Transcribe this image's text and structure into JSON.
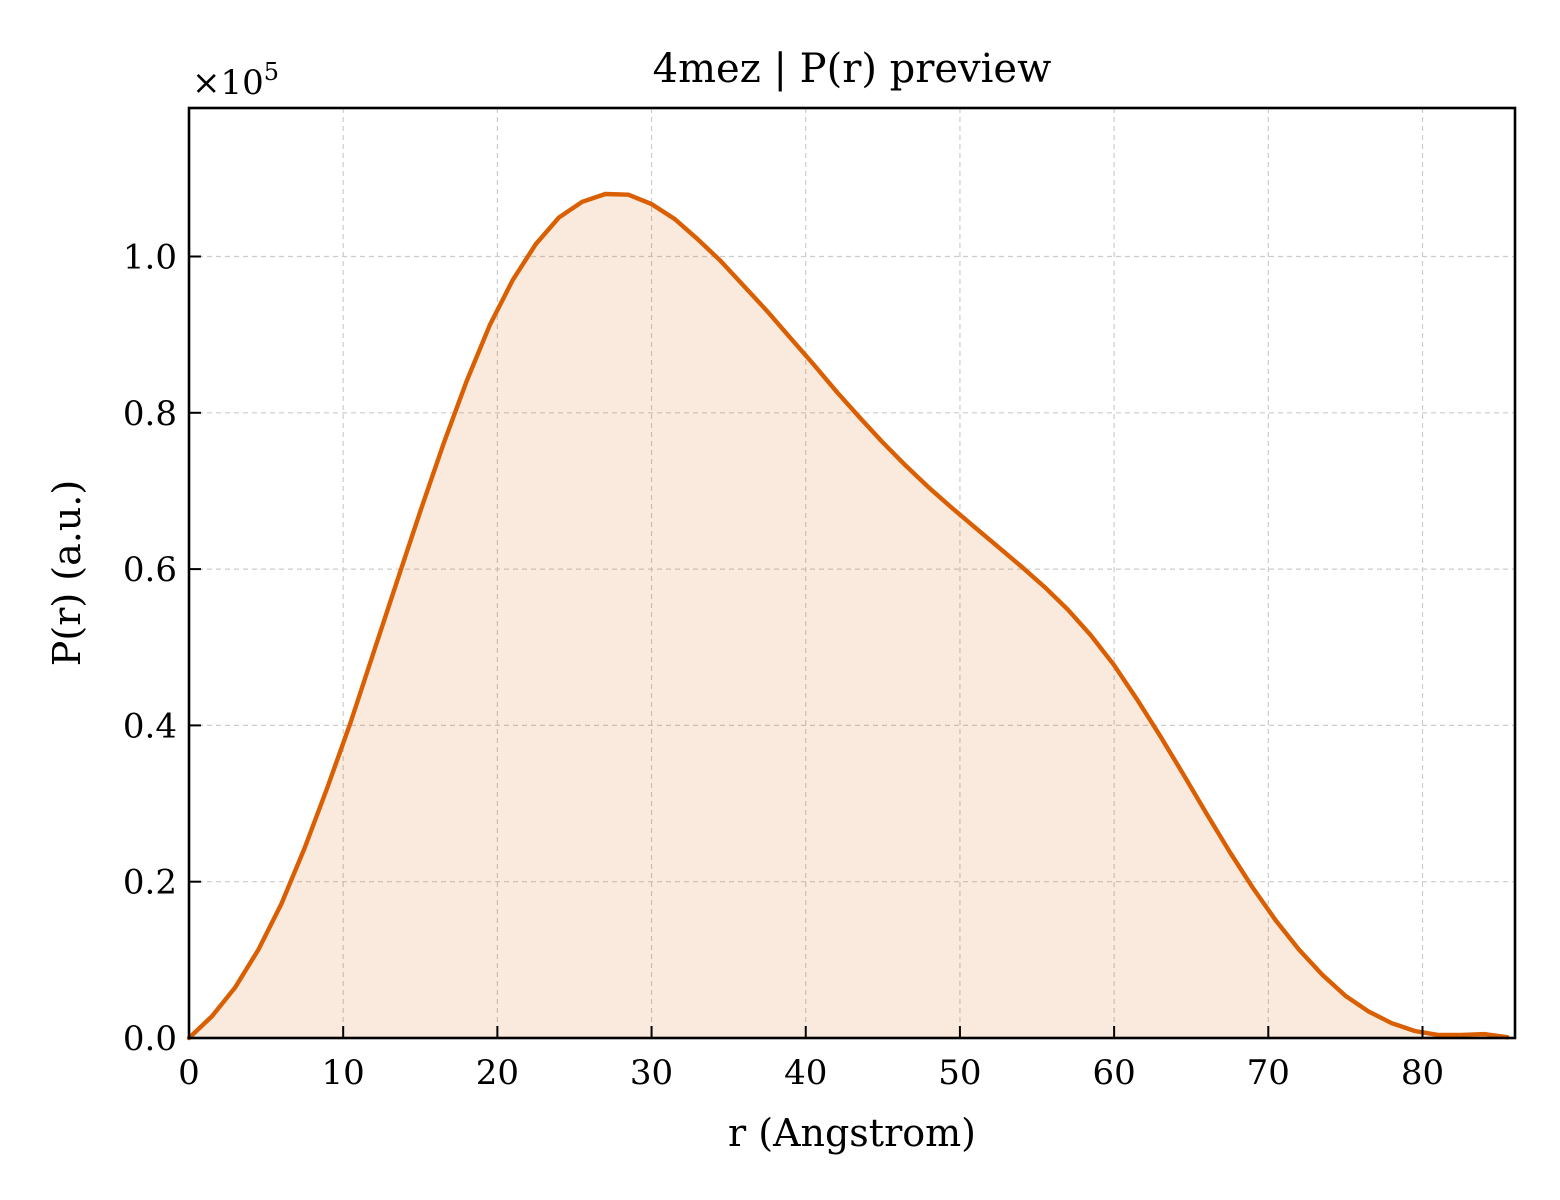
{
  "chart_data": {
    "type": "area",
    "title": "4mez | P(r) preview",
    "xlabel": "r (Angstrom)",
    "ylabel": "P(r) (a.u.)",
    "y_multiplier_base": "×10",
    "y_multiplier_exp": "5",
    "xlim": [
      0,
      86
    ],
    "ylim": [
      0,
      1.19
    ],
    "x_ticks": [
      0,
      10,
      20,
      30,
      40,
      50,
      60,
      70,
      80
    ],
    "x_tick_labels": [
      "0",
      "10",
      "20",
      "30",
      "40",
      "50",
      "60",
      "70",
      "80"
    ],
    "y_ticks": [
      0,
      0.2,
      0.4,
      0.6,
      0.8,
      1.0
    ],
    "y_tick_labels": [
      "0.0",
      "0.2",
      "0.4",
      "0.6",
      "0.8",
      "1.0"
    ],
    "grid": true,
    "colors": {
      "line": "#d95f02",
      "fill": "#d95f02"
    },
    "series": [
      {
        "x": [
          0,
          1.5,
          3,
          4.5,
          6,
          7.5,
          9,
          10.5,
          12,
          13.5,
          15,
          16.5,
          18,
          19.5,
          21,
          22.5,
          24,
          25.5,
          27,
          28.5,
          30,
          31.5,
          33,
          34.5,
          36,
          37.5,
          39,
          40.5,
          42,
          43.5,
          45,
          46.5,
          48,
          49.5,
          51,
          52.5,
          54,
          55.5,
          57,
          58.5,
          60,
          61.5,
          63,
          64.5,
          66,
          67.5,
          69,
          70.5,
          72,
          73.5,
          75,
          76.5,
          78,
          79.5,
          81,
          82.5,
          84,
          85.5
        ],
        "values": [
          0.0,
          0.028,
          0.065,
          0.113,
          0.172,
          0.243,
          0.322,
          0.405,
          0.495,
          0.585,
          0.674,
          0.76,
          0.84,
          0.912,
          0.97,
          1.016,
          1.05,
          1.07,
          1.08,
          1.079,
          1.067,
          1.048,
          1.022,
          0.994,
          0.962,
          0.93,
          0.896,
          0.862,
          0.827,
          0.794,
          0.762,
          0.732,
          0.704,
          0.678,
          0.653,
          0.628,
          0.603,
          0.577,
          0.548,
          0.515,
          0.477,
          0.433,
          0.386,
          0.337,
          0.287,
          0.238,
          0.192,
          0.15,
          0.113,
          0.081,
          0.054,
          0.034,
          0.019,
          0.009,
          0.004,
          0.004,
          0.005,
          0.001
        ]
      }
    ]
  }
}
